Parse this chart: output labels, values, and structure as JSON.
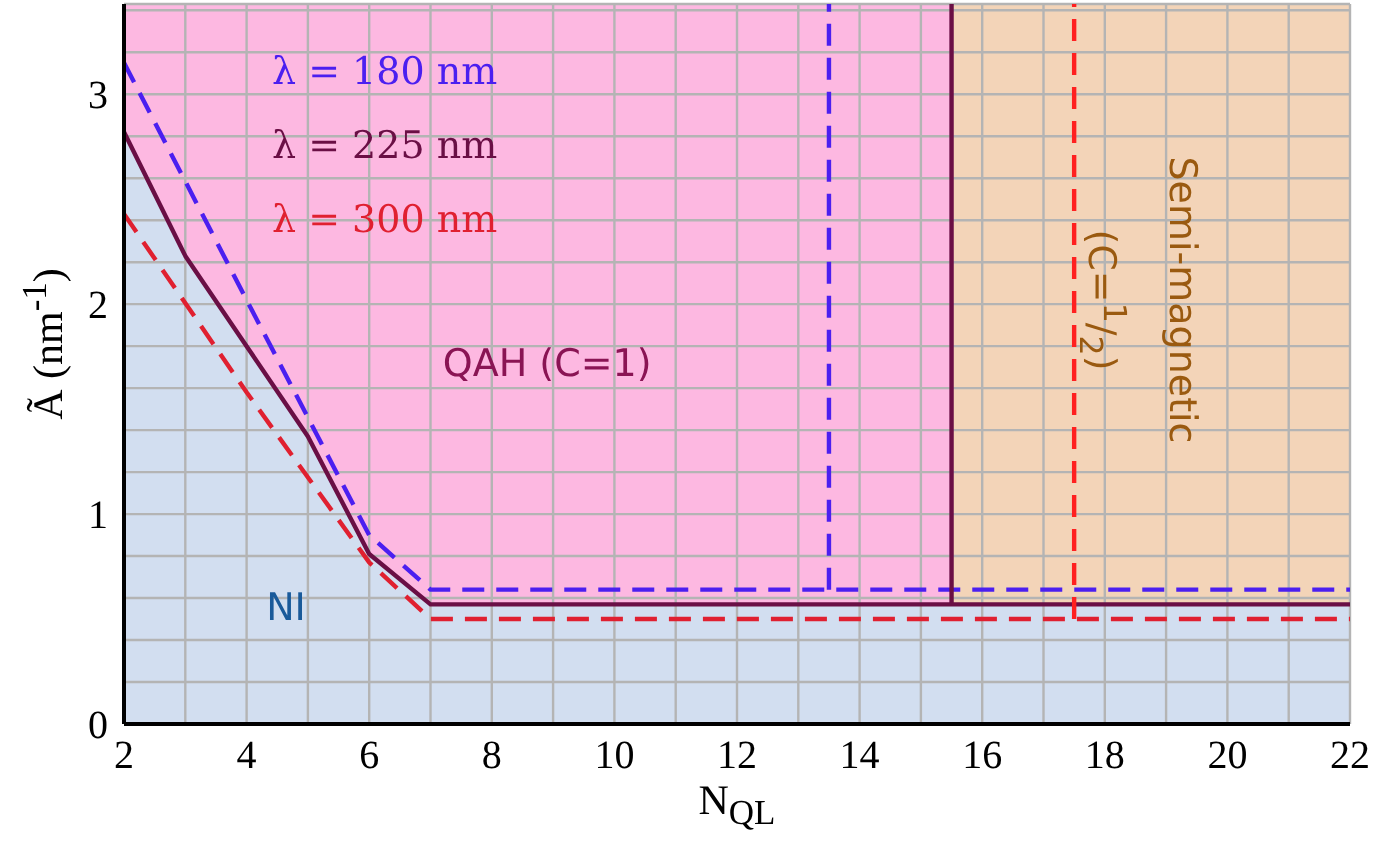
{
  "chart_data": {
    "type": "line",
    "xlabel": "N$_{QL}$",
    "ylabel": "Ã (nm$^{-1}$)",
    "xlim": [
      2,
      22
    ],
    "ylim": [
      0,
      3.43
    ],
    "xticks": [
      2,
      {
        "value": 3,
        "label": null
      },
      4,
      {
        "value": 5,
        "label": null
      },
      6,
      {
        "value": 7,
        "label": null
      },
      8,
      {
        "value": 9,
        "label": null
      },
      10,
      {
        "value": 11,
        "label": null
      },
      12,
      {
        "value": 13,
        "label": null
      },
      14,
      {
        "value": 15,
        "label": null
      },
      16,
      {
        "value": 17,
        "label": null
      },
      18,
      {
        "value": 19,
        "label": null
      },
      20,
      {
        "value": 21,
        "label": null
      },
      22
    ],
    "yticks": [
      0,
      {
        "value": 0.2,
        "label": null
      },
      {
        "value": 0.4,
        "label": null
      },
      {
        "value": 0.6,
        "label": null
      },
      {
        "value": 0.8,
        "label": null
      },
      1,
      {
        "value": 1.2,
        "label": null
      },
      {
        "value": 1.4,
        "label": null
      },
      {
        "value": 1.6,
        "label": null
      },
      {
        "value": 1.8,
        "label": null
      },
      2,
      {
        "value": 2.2,
        "label": null
      },
      {
        "value": 2.4,
        "label": null
      },
      {
        "value": 2.6,
        "label": null
      },
      {
        "value": 2.8,
        "label": null
      },
      3,
      {
        "value": 3.2,
        "label": null
      },
      {
        "value": 3.4,
        "label": null
      }
    ],
    "grid": true,
    "legend": "top left",
    "bands": [
      {
        "axis": "x",
        "from": 2,
        "to": 15.5,
        "color": "#fdb8e1"
      },
      {
        "axis": "x",
        "from": 15.5,
        "to": 22,
        "color": "#f3d4b8"
      }
    ],
    "series": [
      {
        "name": "λ = 180 nm",
        "color": "#4b1ff0",
        "line_style": "dashed",
        "x": [
          2,
          4,
          6,
          7,
          22
        ],
        "values": [
          3.15,
          2.02,
          0.9,
          0.64,
          0.64
        ]
      },
      {
        "name": "λ = 225 nm",
        "color": "#6a0f45",
        "line_style": "solid",
        "x": [
          2,
          3,
          4,
          5,
          6,
          7,
          15.5,
          15.5,
          15.5,
          22
        ],
        "values": [
          2.82,
          2.23,
          1.8,
          1.37,
          0.81,
          0.57,
          0.57,
          3.43,
          0.57,
          0.57
        ]
      },
      {
        "name": "λ = 300 nm",
        "color": "#e02030",
        "line_style": "dashed",
        "x": [
          2,
          4,
          6,
          7,
          22
        ],
        "values": [
          2.43,
          1.58,
          0.77,
          0.5,
          0.5
        ]
      },
      {
        "color": "#4b1ff0",
        "line_style": "dashed",
        "x": [
          13.5,
          13.5
        ],
        "values": [
          0.64,
          3.43
        ]
      },
      {
        "color": "#ff2020",
        "line_style": "dashed",
        "x": [
          17.5,
          17.5
        ],
        "values": [
          0.5,
          3.43
        ]
      },
      {
        "type": "area",
        "color": "#d2def0",
        "x": [
          2,
          3,
          4,
          5,
          6,
          7,
          22
        ],
        "values": [
          2.82,
          2.23,
          1.8,
          1.37,
          0.81,
          0.57,
          0.57
        ]
      }
    ],
    "annotations": [
      "QAH (C=1)",
      "NI",
      "Semi-magnetic (C=$^{1}$/$_{2}$)"
    ]
  }
}
